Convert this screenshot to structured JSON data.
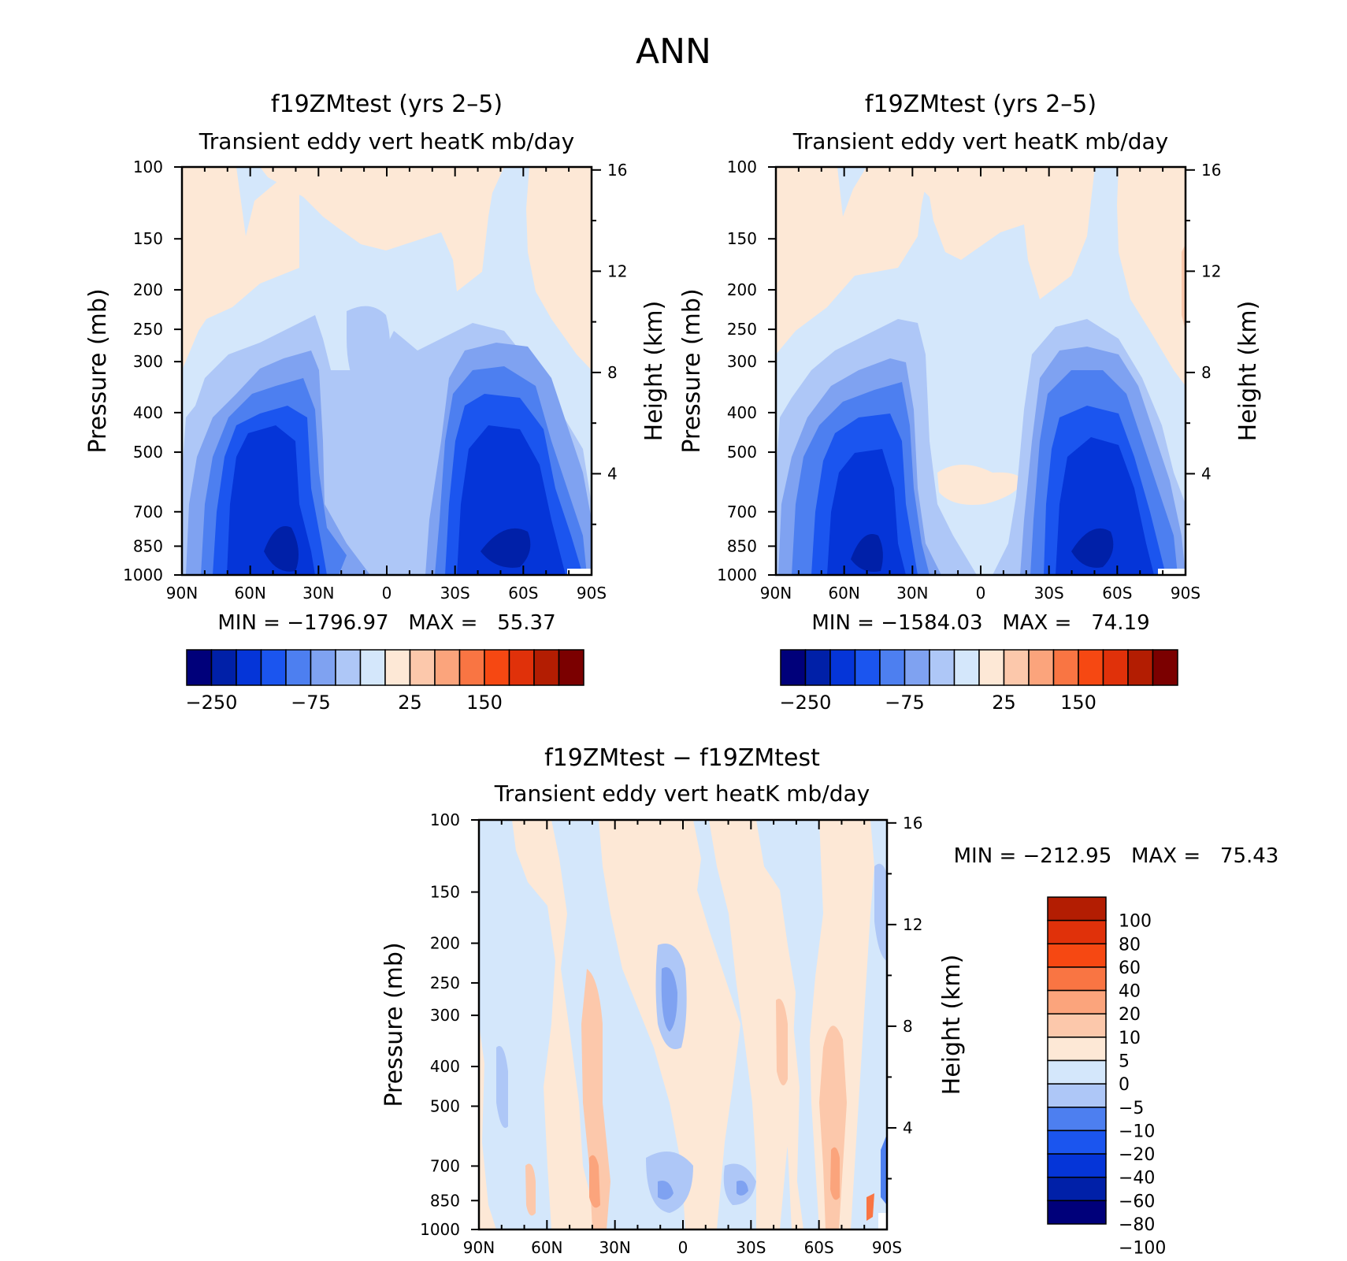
{
  "figure_title": "ANN",
  "colors": {
    "cb_top": [
      "#00007a",
      "#0020a8",
      "#0535d8",
      "#1b55ef",
      "#4d7ff0",
      "#7fa2f1",
      "#aec7f7",
      "#d4e7fb",
      "#fde8d6",
      "#fcc8ab",
      "#fba47c",
      "#f97543",
      "#f64812",
      "#e0310a",
      "#b31d02",
      "#7b0000"
    ],
    "cb_diff": [
      "#00007a",
      "#0020a8",
      "#0535d8",
      "#1b55ef",
      "#4d7ff0",
      "#aec7f7",
      "#d4e7fb",
      "#fde8d6",
      "#fcc8ab",
      "#fba47c",
      "#f97543",
      "#f64812",
      "#e0310a",
      "#b31d02"
    ]
  },
  "chart_data": [
    {
      "type": "heatmap",
      "title": "f19ZMtest (yrs 2–5)",
      "subtitle": "Transient eddy vert heatK mb/day",
      "ylabel": "Pressure (mb)",
      "y2label": "Height (km)",
      "xticks": [
        "90N",
        "60N",
        "30N",
        "0",
        "30S",
        "60S",
        "90S"
      ],
      "yticks": [
        "100",
        "150",
        "200",
        "250",
        "300",
        "400",
        "500",
        "700",
        "850",
        "1000"
      ],
      "y2ticks": [
        "16",
        "12",
        "8",
        "4"
      ],
      "stats_label": "MIN = −1796.97   MAX =   55.37",
      "min": -1796.97,
      "max": 55.37,
      "colorbar": {
        "orientation": "horizontal",
        "labels": [
          "−250",
          "−75",
          "25",
          "150"
        ]
      }
    },
    {
      "type": "heatmap",
      "title": "f19ZMtest (yrs 2–5)",
      "subtitle": "Transient eddy vert heatK mb/day",
      "ylabel": "Pressure (mb)",
      "y2label": "Height (km)",
      "xticks": [
        "90N",
        "60N",
        "30N",
        "0",
        "30S",
        "60S",
        "90S"
      ],
      "yticks": [
        "100",
        "150",
        "200",
        "250",
        "300",
        "400",
        "500",
        "700",
        "850",
        "1000"
      ],
      "y2ticks": [
        "16",
        "12",
        "8",
        "4"
      ],
      "stats_label": "MIN = −1584.03   MAX =   74.19",
      "min": -1584.03,
      "max": 74.19,
      "colorbar": {
        "orientation": "horizontal",
        "labels": [
          "−250",
          "−75",
          "25",
          "150"
        ]
      }
    },
    {
      "type": "heatmap",
      "title": "f19ZMtest − f19ZMtest",
      "subtitle": "Transient eddy vert heatK mb/day",
      "ylabel": "Pressure (mb)",
      "y2label": "Height (km)",
      "xticks": [
        "90N",
        "60N",
        "30N",
        "0",
        "30S",
        "60S",
        "90S"
      ],
      "yticks": [
        "100",
        "150",
        "200",
        "250",
        "300",
        "400",
        "500",
        "700",
        "850",
        "1000"
      ],
      "y2ticks": [
        "16",
        "12",
        "8",
        "4"
      ],
      "stats_label": "MIN = −212.95   MAX =   75.43",
      "min": -212.95,
      "max": 75.43,
      "colorbar": {
        "orientation": "vertical",
        "labels": [
          "100",
          "80",
          "60",
          "40",
          "20",
          "10",
          "5",
          "0",
          "−5",
          "−10",
          "−20",
          "−40",
          "−60",
          "−80",
          "−100"
        ]
      }
    }
  ]
}
